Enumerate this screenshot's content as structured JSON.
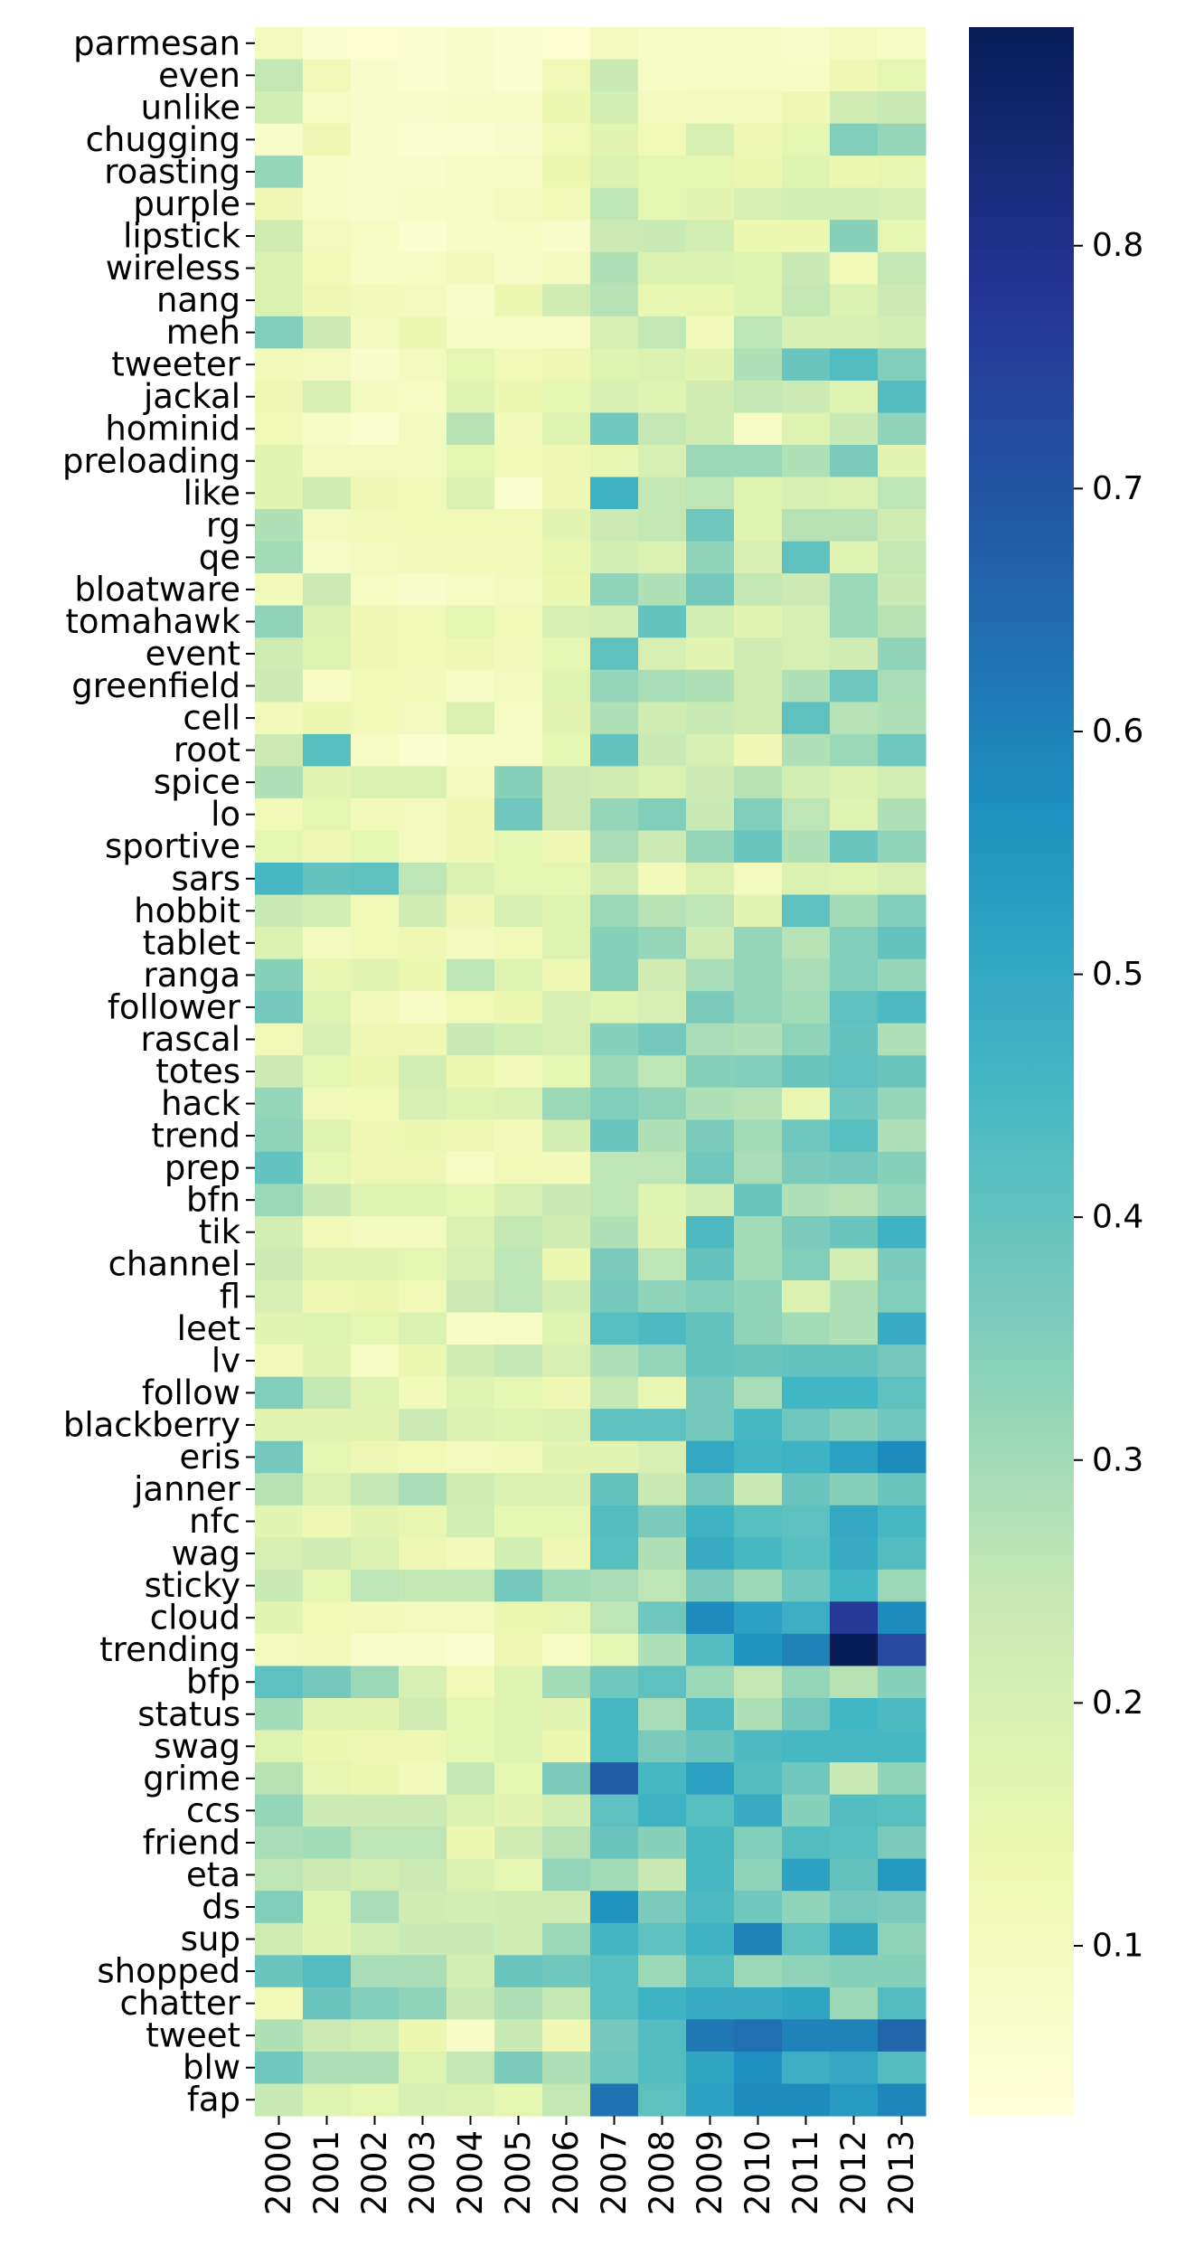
{
  "chart_data": {
    "type": "heatmap",
    "title": "",
    "xlabel": "",
    "ylabel": "",
    "colormap": "YlGnBu",
    "colorbar": {
      "range": [
        0.03,
        0.89
      ],
      "ticks": [
        0.1,
        0.2,
        0.3,
        0.4,
        0.5,
        0.6,
        0.7,
        0.8
      ]
    },
    "x_labels": [
      "2000",
      "2001",
      "2002",
      "2003",
      "2004",
      "2005",
      "2006",
      "2007",
      "2008",
      "2009",
      "2010",
      "2011",
      "2012",
      "2013"
    ],
    "y_labels": [
      "parmesan",
      "even",
      "unlike",
      "chugging",
      "roasting",
      "purple",
      "lipstick",
      "wireless",
      "nang",
      "meh",
      "tweeter",
      "jackal",
      "hominid",
      "preloading",
      "like",
      "rg",
      "qe",
      "bloatware",
      "tomahawk",
      "event",
      "greenfield",
      "cell",
      "root",
      "spice",
      "lo",
      "sportive",
      "sars",
      "hobbit",
      "tablet",
      "ranga",
      "follower",
      "rascal",
      "totes",
      "hack",
      "trend",
      "prep",
      "bfn",
      "tik",
      "channel",
      "fl",
      "leet",
      "lv",
      "follow",
      "blackberry",
      "eris",
      "janner",
      "nfc",
      "wag",
      "sticky",
      "cloud",
      "trending",
      "bfp",
      "status",
      "swag",
      "grime",
      "ccs",
      "friend",
      "eta",
      "ds",
      "sup",
      "shopped",
      "chatter",
      "tweet",
      "blw",
      "fap"
    ],
    "values": [
      [
        0.1,
        0.06,
        0.05,
        0.06,
        0.07,
        0.06,
        0.05,
        0.1,
        0.08,
        0.09,
        0.08,
        0.07,
        0.1,
        0.08
      ],
      [
        0.25,
        0.12,
        0.07,
        0.06,
        0.07,
        0.06,
        0.12,
        0.24,
        0.08,
        0.09,
        0.09,
        0.08,
        0.13,
        0.16
      ],
      [
        0.21,
        0.09,
        0.07,
        0.07,
        0.08,
        0.08,
        0.14,
        0.21,
        0.1,
        0.1,
        0.1,
        0.13,
        0.22,
        0.24
      ],
      [
        0.07,
        0.13,
        0.07,
        0.06,
        0.06,
        0.07,
        0.12,
        0.17,
        0.12,
        0.2,
        0.13,
        0.16,
        0.35,
        0.32
      ],
      [
        0.32,
        0.08,
        0.07,
        0.07,
        0.09,
        0.09,
        0.14,
        0.19,
        0.16,
        0.16,
        0.14,
        0.18,
        0.14,
        0.15
      ],
      [
        0.13,
        0.08,
        0.07,
        0.08,
        0.09,
        0.1,
        0.12,
        0.26,
        0.16,
        0.17,
        0.2,
        0.21,
        0.21,
        0.2
      ],
      [
        0.22,
        0.1,
        0.09,
        0.06,
        0.08,
        0.09,
        0.07,
        0.23,
        0.24,
        0.21,
        0.14,
        0.14,
        0.34,
        0.16
      ],
      [
        0.19,
        0.12,
        0.08,
        0.09,
        0.11,
        0.08,
        0.1,
        0.28,
        0.19,
        0.19,
        0.18,
        0.24,
        0.12,
        0.25
      ],
      [
        0.19,
        0.13,
        0.11,
        0.1,
        0.07,
        0.14,
        0.22,
        0.27,
        0.15,
        0.15,
        0.18,
        0.25,
        0.19,
        0.23
      ],
      [
        0.35,
        0.23,
        0.1,
        0.14,
        0.08,
        0.09,
        0.09,
        0.2,
        0.25,
        0.11,
        0.26,
        0.2,
        0.2,
        0.21
      ],
      [
        0.11,
        0.1,
        0.07,
        0.1,
        0.16,
        0.12,
        0.13,
        0.18,
        0.19,
        0.17,
        0.28,
        0.39,
        0.43,
        0.35
      ],
      [
        0.13,
        0.2,
        0.1,
        0.09,
        0.18,
        0.14,
        0.16,
        0.2,
        0.18,
        0.22,
        0.25,
        0.23,
        0.18,
        0.43
      ],
      [
        0.12,
        0.08,
        0.06,
        0.1,
        0.27,
        0.11,
        0.18,
        0.38,
        0.25,
        0.22,
        0.09,
        0.18,
        0.24,
        0.33
      ],
      [
        0.17,
        0.1,
        0.1,
        0.1,
        0.16,
        0.12,
        0.13,
        0.15,
        0.2,
        0.31,
        0.31,
        0.28,
        0.36,
        0.17
      ],
      [
        0.17,
        0.22,
        0.13,
        0.12,
        0.19,
        0.06,
        0.13,
        0.47,
        0.25,
        0.26,
        0.18,
        0.2,
        0.19,
        0.26
      ],
      [
        0.28,
        0.1,
        0.11,
        0.12,
        0.12,
        0.12,
        0.17,
        0.23,
        0.25,
        0.38,
        0.18,
        0.27,
        0.27,
        0.22
      ],
      [
        0.3,
        0.08,
        0.1,
        0.11,
        0.11,
        0.11,
        0.15,
        0.21,
        0.19,
        0.33,
        0.2,
        0.41,
        0.18,
        0.25
      ],
      [
        0.11,
        0.23,
        0.09,
        0.07,
        0.09,
        0.1,
        0.14,
        0.33,
        0.28,
        0.37,
        0.25,
        0.23,
        0.31,
        0.24
      ],
      [
        0.33,
        0.19,
        0.13,
        0.12,
        0.16,
        0.12,
        0.2,
        0.21,
        0.4,
        0.21,
        0.17,
        0.2,
        0.31,
        0.27
      ],
      [
        0.22,
        0.18,
        0.13,
        0.12,
        0.13,
        0.11,
        0.16,
        0.41,
        0.2,
        0.17,
        0.22,
        0.2,
        0.22,
        0.33
      ],
      [
        0.23,
        0.09,
        0.12,
        0.11,
        0.08,
        0.1,
        0.18,
        0.32,
        0.29,
        0.28,
        0.22,
        0.28,
        0.38,
        0.29
      ],
      [
        0.11,
        0.14,
        0.12,
        0.1,
        0.19,
        0.09,
        0.17,
        0.28,
        0.22,
        0.24,
        0.22,
        0.41,
        0.27,
        0.28
      ],
      [
        0.23,
        0.42,
        0.09,
        0.06,
        0.08,
        0.08,
        0.16,
        0.4,
        0.24,
        0.2,
        0.13,
        0.28,
        0.31,
        0.38
      ],
      [
        0.28,
        0.17,
        0.19,
        0.19,
        0.1,
        0.34,
        0.23,
        0.22,
        0.19,
        0.23,
        0.27,
        0.21,
        0.19,
        0.21
      ],
      [
        0.12,
        0.16,
        0.11,
        0.1,
        0.13,
        0.38,
        0.23,
        0.32,
        0.35,
        0.24,
        0.35,
        0.26,
        0.18,
        0.28
      ],
      [
        0.16,
        0.13,
        0.16,
        0.1,
        0.13,
        0.16,
        0.13,
        0.29,
        0.23,
        0.32,
        0.39,
        0.28,
        0.39,
        0.33
      ],
      [
        0.45,
        0.4,
        0.41,
        0.26,
        0.19,
        0.16,
        0.16,
        0.22,
        0.11,
        0.19,
        0.1,
        0.19,
        0.18,
        0.2
      ],
      [
        0.24,
        0.21,
        0.12,
        0.22,
        0.13,
        0.2,
        0.18,
        0.31,
        0.27,
        0.26,
        0.17,
        0.41,
        0.3,
        0.35
      ],
      [
        0.19,
        0.1,
        0.12,
        0.13,
        0.1,
        0.12,
        0.18,
        0.34,
        0.32,
        0.22,
        0.32,
        0.27,
        0.35,
        0.4
      ],
      [
        0.34,
        0.15,
        0.17,
        0.14,
        0.26,
        0.18,
        0.13,
        0.34,
        0.22,
        0.29,
        0.32,
        0.29,
        0.35,
        0.32
      ],
      [
        0.37,
        0.18,
        0.11,
        0.08,
        0.12,
        0.14,
        0.2,
        0.18,
        0.2,
        0.36,
        0.32,
        0.3,
        0.41,
        0.44
      ],
      [
        0.12,
        0.2,
        0.13,
        0.13,
        0.24,
        0.21,
        0.2,
        0.34,
        0.37,
        0.29,
        0.28,
        0.33,
        0.4,
        0.28
      ],
      [
        0.23,
        0.16,
        0.14,
        0.21,
        0.14,
        0.11,
        0.16,
        0.31,
        0.26,
        0.34,
        0.35,
        0.39,
        0.41,
        0.39
      ],
      [
        0.32,
        0.11,
        0.12,
        0.2,
        0.18,
        0.19,
        0.31,
        0.35,
        0.33,
        0.28,
        0.27,
        0.15,
        0.38,
        0.32
      ],
      [
        0.33,
        0.18,
        0.13,
        0.14,
        0.13,
        0.11,
        0.21,
        0.39,
        0.28,
        0.36,
        0.3,
        0.38,
        0.42,
        0.28
      ],
      [
        0.4,
        0.16,
        0.13,
        0.13,
        0.09,
        0.12,
        0.11,
        0.26,
        0.26,
        0.38,
        0.29,
        0.36,
        0.37,
        0.34
      ],
      [
        0.31,
        0.24,
        0.18,
        0.18,
        0.16,
        0.2,
        0.24,
        0.26,
        0.18,
        0.21,
        0.39,
        0.28,
        0.27,
        0.32
      ],
      [
        0.21,
        0.12,
        0.1,
        0.1,
        0.19,
        0.25,
        0.22,
        0.28,
        0.17,
        0.44,
        0.3,
        0.36,
        0.39,
        0.47
      ],
      [
        0.23,
        0.17,
        0.17,
        0.16,
        0.2,
        0.26,
        0.14,
        0.36,
        0.26,
        0.4,
        0.3,
        0.35,
        0.21,
        0.36
      ],
      [
        0.2,
        0.13,
        0.14,
        0.12,
        0.23,
        0.26,
        0.21,
        0.37,
        0.33,
        0.35,
        0.33,
        0.19,
        0.28,
        0.35
      ],
      [
        0.17,
        0.18,
        0.16,
        0.19,
        0.08,
        0.09,
        0.18,
        0.42,
        0.44,
        0.4,
        0.33,
        0.3,
        0.28,
        0.49
      ],
      [
        0.11,
        0.17,
        0.09,
        0.14,
        0.22,
        0.25,
        0.2,
        0.28,
        0.32,
        0.4,
        0.39,
        0.4,
        0.4,
        0.37
      ],
      [
        0.35,
        0.25,
        0.18,
        0.11,
        0.18,
        0.16,
        0.13,
        0.25,
        0.15,
        0.37,
        0.29,
        0.46,
        0.46,
        0.41
      ],
      [
        0.17,
        0.17,
        0.17,
        0.23,
        0.19,
        0.18,
        0.19,
        0.41,
        0.41,
        0.37,
        0.45,
        0.38,
        0.34,
        0.38
      ],
      [
        0.37,
        0.16,
        0.13,
        0.12,
        0.1,
        0.11,
        0.17,
        0.17,
        0.2,
        0.5,
        0.46,
        0.47,
        0.52,
        0.58
      ],
      [
        0.27,
        0.19,
        0.25,
        0.29,
        0.22,
        0.19,
        0.19,
        0.4,
        0.24,
        0.37,
        0.24,
        0.39,
        0.34,
        0.39
      ],
      [
        0.17,
        0.13,
        0.17,
        0.15,
        0.21,
        0.16,
        0.16,
        0.43,
        0.36,
        0.47,
        0.42,
        0.41,
        0.5,
        0.45
      ],
      [
        0.2,
        0.22,
        0.19,
        0.13,
        0.11,
        0.21,
        0.13,
        0.42,
        0.28,
        0.49,
        0.45,
        0.42,
        0.49,
        0.43
      ],
      [
        0.24,
        0.16,
        0.26,
        0.25,
        0.25,
        0.37,
        0.3,
        0.29,
        0.26,
        0.36,
        0.31,
        0.38,
        0.46,
        0.31
      ],
      [
        0.17,
        0.12,
        0.11,
        0.1,
        0.1,
        0.14,
        0.15,
        0.26,
        0.38,
        0.58,
        0.52,
        0.48,
        0.77,
        0.58
      ],
      [
        0.1,
        0.11,
        0.07,
        0.07,
        0.06,
        0.13,
        0.09,
        0.16,
        0.28,
        0.43,
        0.56,
        0.6,
        0.89,
        0.73
      ],
      [
        0.41,
        0.37,
        0.31,
        0.2,
        0.12,
        0.18,
        0.3,
        0.38,
        0.41,
        0.31,
        0.25,
        0.32,
        0.27,
        0.34
      ],
      [
        0.3,
        0.17,
        0.17,
        0.22,
        0.16,
        0.18,
        0.17,
        0.45,
        0.29,
        0.44,
        0.28,
        0.37,
        0.46,
        0.44
      ],
      [
        0.18,
        0.14,
        0.13,
        0.13,
        0.16,
        0.18,
        0.14,
        0.45,
        0.36,
        0.39,
        0.44,
        0.45,
        0.45,
        0.45
      ],
      [
        0.27,
        0.15,
        0.14,
        0.11,
        0.25,
        0.16,
        0.36,
        0.68,
        0.45,
        0.52,
        0.43,
        0.38,
        0.24,
        0.33
      ],
      [
        0.32,
        0.23,
        0.23,
        0.23,
        0.19,
        0.17,
        0.21,
        0.41,
        0.47,
        0.42,
        0.49,
        0.34,
        0.43,
        0.42
      ],
      [
        0.29,
        0.3,
        0.26,
        0.26,
        0.14,
        0.22,
        0.27,
        0.39,
        0.34,
        0.45,
        0.35,
        0.43,
        0.42,
        0.36
      ],
      [
        0.26,
        0.23,
        0.21,
        0.23,
        0.19,
        0.16,
        0.32,
        0.3,
        0.24,
        0.45,
        0.33,
        0.52,
        0.4,
        0.55
      ],
      [
        0.35,
        0.18,
        0.29,
        0.22,
        0.21,
        0.22,
        0.22,
        0.56,
        0.36,
        0.44,
        0.38,
        0.33,
        0.37,
        0.36
      ],
      [
        0.22,
        0.17,
        0.21,
        0.24,
        0.24,
        0.22,
        0.31,
        0.46,
        0.41,
        0.47,
        0.6,
        0.41,
        0.51,
        0.33
      ],
      [
        0.39,
        0.43,
        0.29,
        0.29,
        0.21,
        0.39,
        0.38,
        0.42,
        0.31,
        0.43,
        0.31,
        0.33,
        0.34,
        0.34
      ],
      [
        0.12,
        0.39,
        0.35,
        0.33,
        0.24,
        0.28,
        0.25,
        0.42,
        0.47,
        0.49,
        0.49,
        0.51,
        0.31,
        0.43
      ],
      [
        0.28,
        0.23,
        0.21,
        0.14,
        0.08,
        0.24,
        0.13,
        0.37,
        0.43,
        0.62,
        0.64,
        0.6,
        0.6,
        0.66
      ],
      [
        0.38,
        0.28,
        0.28,
        0.18,
        0.25,
        0.36,
        0.28,
        0.38,
        0.43,
        0.51,
        0.57,
        0.48,
        0.5,
        0.43
      ],
      [
        0.24,
        0.18,
        0.16,
        0.2,
        0.19,
        0.16,
        0.25,
        0.63,
        0.41,
        0.52,
        0.58,
        0.58,
        0.54,
        0.59
      ]
    ]
  }
}
